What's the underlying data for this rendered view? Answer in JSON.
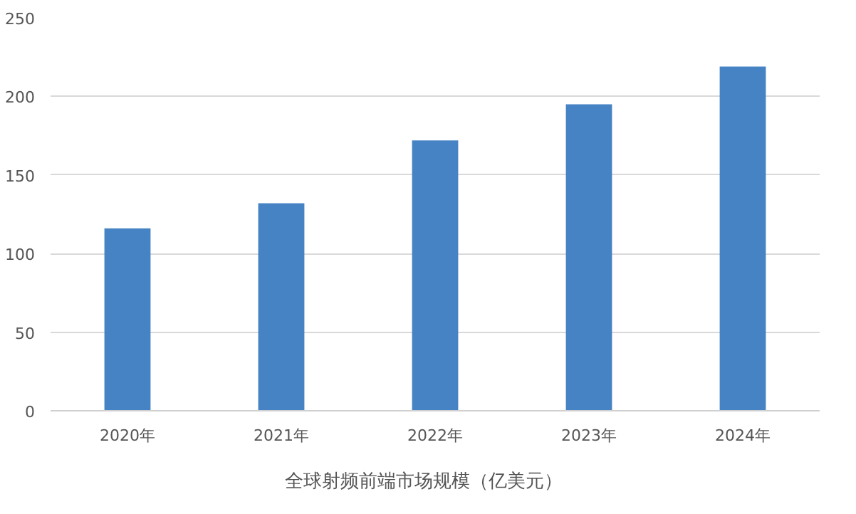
{
  "chart_data": {
    "type": "bar",
    "categories": [
      "2020年",
      "2021年",
      "2022年",
      "2023年",
      "2024年"
    ],
    "series": [
      {
        "name": "全球射频前端市场规模（亿美元）",
        "color": "#4683c4",
        "values": [
          116,
          132,
          172,
          195,
          219
        ]
      }
    ],
    "ylim": [
      0,
      250
    ],
    "yticks": [
      0,
      50,
      100,
      150,
      200,
      250
    ],
    "grid": "y",
    "legend": "bottom"
  }
}
